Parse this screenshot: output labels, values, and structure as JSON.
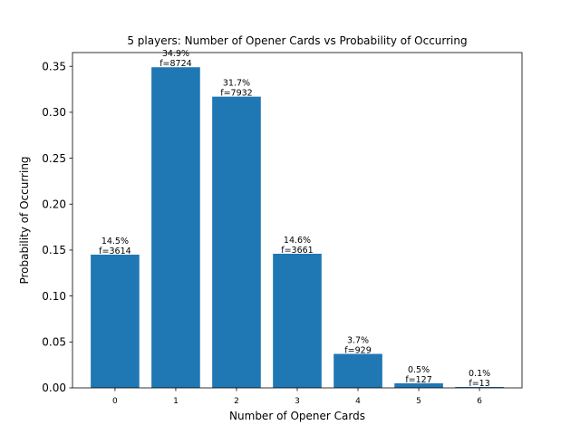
{
  "chart_data": {
    "type": "bar",
    "title": "5 players: Number of Opener Cards vs Probability of Occurring",
    "xlabel": "Number of Opener Cards",
    "ylabel": "Probability of Occurring",
    "categories": [
      "0",
      "1",
      "2",
      "3",
      "4",
      "5",
      "6"
    ],
    "values": [
      0.145,
      0.349,
      0.317,
      0.146,
      0.037,
      0.005,
      0.001
    ],
    "labels": [
      [
        "14.5%",
        "f=3614"
      ],
      [
        "34.9%",
        "f=8724"
      ],
      [
        "31.7%",
        "f=7932"
      ],
      [
        "14.6%",
        "f=3661"
      ],
      [
        "3.7%",
        "f=929"
      ],
      [
        "0.5%",
        "f=127"
      ],
      [
        "0.1%",
        "f=13"
      ]
    ],
    "yticks": [
      "0.00",
      "0.05",
      "0.10",
      "0.15",
      "0.20",
      "0.25",
      "0.30",
      "0.35"
    ],
    "ylim": [
      0,
      0.365
    ],
    "bar_color": "#1f77b4",
    "grid": false,
    "legend": "none"
  }
}
